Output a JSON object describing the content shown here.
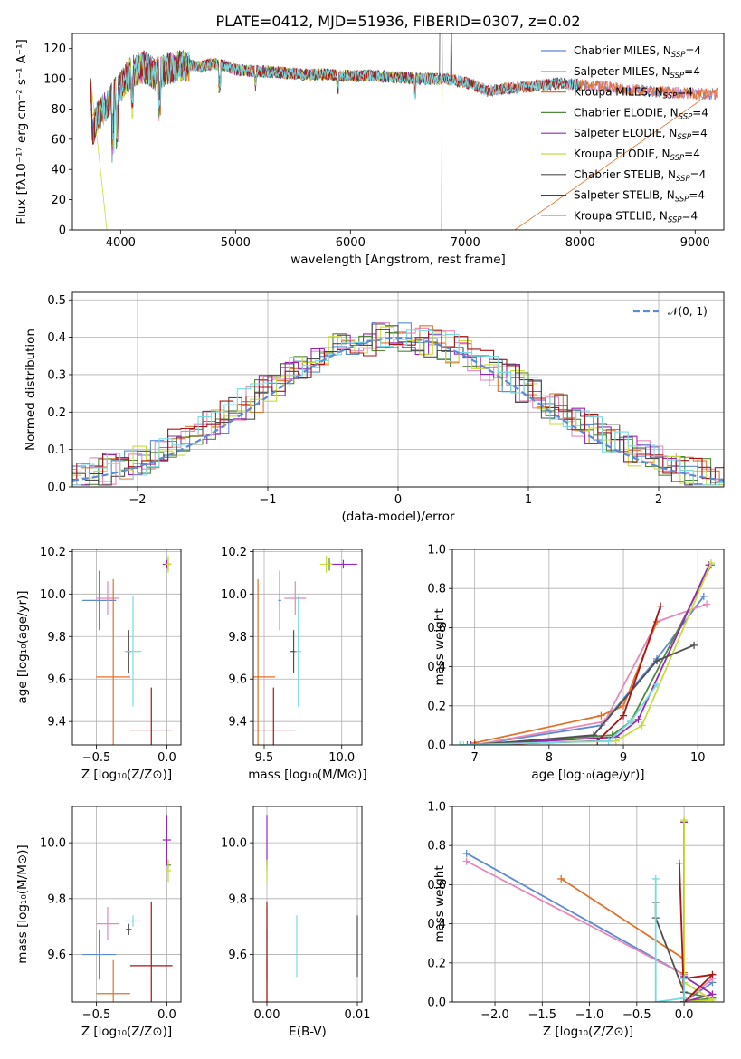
{
  "figure": {
    "title": "PLATE=0412, MJD=51936, FIBERID=0307, z=0.02"
  },
  "colors": {
    "Chabrier MILES": "#5b8bd5",
    "Salpeter MILES": "#e887b8",
    "Kroupa MILES": "#e0722a",
    "Chabrier ELODIE": "#4f8a3c",
    "Salpeter ELODIE": "#9b26b6",
    "Kroupa ELODIE": "#c9dc3a",
    "Chabrier STELIB": "#505050",
    "Salpeter STELIB": "#a81616",
    "Kroupa STELIB": "#76dce0"
  },
  "chart_data": [
    {
      "id": "spectrum",
      "type": "line",
      "title": "PLATE=0412, MJD=51936, FIBERID=0307, z=0.02",
      "xlabel": "wavelength [Angstrom, rest frame]",
      "ylabel": "Flux [fλ10⁻¹⁷ erg cm⁻² s⁻¹ A⁻¹]",
      "xlim": [
        3580,
        9250
      ],
      "ylim": [
        0,
        130
      ],
      "xticks": [
        "4000",
        "5000",
        "6000",
        "7000",
        "8000",
        "9000"
      ],
      "yticks": [
        "0",
        "20",
        "40",
        "60",
        "80",
        "100",
        "120"
      ],
      "grid": false,
      "legend_position": "top-right",
      "legend": [
        {
          "label": "Chabrier MILES, N",
          "sub": "SSP",
          "suffix": "=4"
        },
        {
          "label": "Salpeter MILES, N",
          "sub": "SSP",
          "suffix": "=4"
        },
        {
          "label": "Kroupa MILES, N",
          "sub": "SSP",
          "suffix": "=4"
        },
        {
          "label": "Chabrier ELODIE, N",
          "sub": "SSP",
          "suffix": "=4"
        },
        {
          "label": "Salpeter ELODIE, N",
          "sub": "SSP",
          "suffix": "=4"
        },
        {
          "label": "Kroupa ELODIE, N",
          "sub": "SSP",
          "suffix": "=4"
        },
        {
          "label": "Chabrier STELIB, N",
          "sub": "SSP",
          "suffix": "=4"
        },
        {
          "label": "Salpeter STELIB, N",
          "sub": "SSP",
          "suffix": "=4"
        },
        {
          "label": "Kroupa STELIB, N",
          "sub": "SSP",
          "suffix": "=4"
        }
      ],
      "continuum": {
        "x": [
          3750,
          3800,
          3850,
          3900,
          3950,
          4000,
          4100,
          4200,
          4300,
          4400,
          4500,
          4600,
          4700,
          4800,
          4900,
          5000,
          5200,
          5400,
          5600,
          5800,
          6000,
          6200,
          6400,
          6600,
          6800,
          7000,
          7200,
          7400,
          7600,
          7800,
          8000,
          8200,
          8400,
          8600,
          8800,
          9000,
          9200
        ],
        "y": [
          65,
          75,
          80,
          85,
          90,
          95,
          105,
          108,
          103,
          106,
          108,
          109,
          108,
          110,
          109,
          106,
          105,
          104,
          103,
          103,
          102,
          102,
          101,
          100,
          100,
          98,
          92,
          94,
          95,
          97,
          96,
          95,
          93,
          92,
          91,
          90,
          90
        ]
      }
    },
    {
      "id": "residuals",
      "type": "line",
      "xlabel": "(data-model)/error",
      "ylabel": "Normed distribution",
      "xlim": [
        -2.5,
        2.5
      ],
      "ylim": [
        0,
        0.52
      ],
      "xticks": [
        "−2",
        "−1",
        "0",
        "1",
        "2"
      ],
      "yticks": [
        "0.0",
        "0.1",
        "0.2",
        "0.3",
        "0.4",
        "0.5"
      ],
      "grid": true,
      "legend_position": "top-right",
      "legend_label": "𝒩(0, 1)",
      "normal": {
        "mu": 0,
        "sigma": 1
      }
    },
    {
      "id": "age_vs_Z",
      "type": "scatter",
      "xlabel": "Z [log₁₀(Z/Z⊙)]",
      "ylabel": "age  [log₁₀(age/yr)]",
      "xlim": [
        -0.67,
        0.1
      ],
      "ylim": [
        9.29,
        10.21
      ],
      "xticks": [
        "−0.5",
        "0.0"
      ],
      "yticks": [
        "9.4",
        "9.6",
        "9.8",
        "10.0",
        "10.2"
      ],
      "grid": true,
      "points": [
        {
          "model": "Chabrier MILES",
          "x": -0.48,
          "y": 9.97,
          "xerr": 0.12,
          "yerr": 0.14
        },
        {
          "model": "Salpeter MILES",
          "x": -0.42,
          "y": 9.98,
          "xerr": 0.08,
          "yerr": 0.08
        },
        {
          "model": "Kroupa MILES",
          "x": -0.38,
          "y": 9.61,
          "xerr": 0.12,
          "yerr": 0.46
        },
        {
          "model": "Chabrier ELODIE",
          "x": 0.01,
          "y": 10.14,
          "xerr": 0.02,
          "yerr": 0.03
        },
        {
          "model": "Salpeter ELODIE",
          "x": 0.0,
          "y": 10.14,
          "xerr": 0.03,
          "yerr": 0.02
        },
        {
          "model": "Kroupa ELODIE",
          "x": 0.01,
          "y": 10.14,
          "xerr": 0.02,
          "yerr": 0.04
        },
        {
          "model": "Chabrier STELIB",
          "x": -0.27,
          "y": 9.73,
          "xerr": 0.02,
          "yerr": 0.1
        },
        {
          "model": "Salpeter STELIB",
          "x": -0.11,
          "y": 9.36,
          "xerr": 0.15,
          "yerr": 0.2
        },
        {
          "model": "Kroupa STELIB",
          "x": -0.24,
          "y": 9.73,
          "xerr": 0.06,
          "yerr": 0.26
        }
      ]
    },
    {
      "id": "age_vs_mass",
      "type": "scatter",
      "xlabel": "mass [log₁₀(M/M⊙)]",
      "xlim": [
        9.43,
        10.13
      ],
      "ylim": [
        9.29,
        10.21
      ],
      "xticks": [
        "9.5",
        "10.0"
      ],
      "yticks": [
        "9.4",
        "9.6",
        "9.8",
        "10.0",
        "10.2"
      ],
      "grid": true,
      "points": [
        {
          "model": "Chabrier MILES",
          "x": 9.6,
          "y": 9.97,
          "xerr": 0.01,
          "yerr": 0.14
        },
        {
          "model": "Salpeter MILES",
          "x": 9.7,
          "y": 9.98,
          "xerr": 0.07,
          "yerr": 0.08
        },
        {
          "model": "Kroupa MILES",
          "x": 9.46,
          "y": 9.61,
          "xerr": 0.11,
          "yerr": 0.46
        },
        {
          "model": "Chabrier ELODIE",
          "x": 9.92,
          "y": 10.14,
          "xerr": 0.02,
          "yerr": 0.03
        },
        {
          "model": "Salpeter ELODIE",
          "x": 10.01,
          "y": 10.14,
          "xerr": 0.09,
          "yerr": 0.02
        },
        {
          "model": "Kroupa ELODIE",
          "x": 9.9,
          "y": 10.14,
          "xerr": 0.04,
          "yerr": 0.04
        },
        {
          "model": "Chabrier STELIB",
          "x": 9.69,
          "y": 9.73,
          "xerr": 0.02,
          "yerr": 0.1
        },
        {
          "model": "Salpeter STELIB",
          "x": 9.56,
          "y": 9.36,
          "xerr": 0.14,
          "yerr": 0.2
        },
        {
          "model": "Kroupa STELIB",
          "x": 9.72,
          "y": 9.73,
          "xerr": 0.02,
          "yerr": 0.26
        }
      ]
    },
    {
      "id": "weight_vs_age",
      "type": "line",
      "xlabel": "age  [log₁₀(age/yr)]",
      "ylabel": "mass weight",
      "xlim": [
        6.7,
        10.35
      ],
      "ylim": [
        0,
        1.0
      ],
      "xticks": [
        "7",
        "8",
        "9",
        "10"
      ],
      "yticks": [
        "0.0",
        "0.2",
        "0.4",
        "0.6",
        "0.8",
        "1.0"
      ],
      "grid": true,
      "series": [
        {
          "model": "Chabrier MILES",
          "x": [
            7.0,
            8.7,
            9.45,
            10.08
          ],
          "y": [
            0.0,
            0.1,
            0.44,
            0.76
          ]
        },
        {
          "model": "Salpeter MILES",
          "x": [
            7.0,
            8.75,
            9.45,
            10.12
          ],
          "y": [
            0.0,
            0.12,
            0.63,
            0.72
          ]
        },
        {
          "model": "Kroupa MILES",
          "x": [
            7.0,
            8.7,
            9.0,
            9.45
          ],
          "y": [
            0.01,
            0.15,
            0.2,
            0.63
          ]
        },
        {
          "model": "Chabrier ELODIE",
          "x": [
            6.9,
            8.85,
            9.1,
            10.18
          ],
          "y": [
            0.0,
            0.05,
            0.12,
            0.92
          ]
        },
        {
          "model": "Salpeter ELODIE",
          "x": [
            6.95,
            8.9,
            9.2,
            10.15
          ],
          "y": [
            0.0,
            0.04,
            0.13,
            0.92
          ]
        },
        {
          "model": "Kroupa ELODIE",
          "x": [
            6.85,
            8.9,
            9.25,
            10.18
          ],
          "y": [
            0.0,
            0.02,
            0.1,
            0.93
          ]
        },
        {
          "model": "Chabrier STELIB",
          "x": [
            7.0,
            8.6,
            9.45,
            9.95
          ],
          "y": [
            0.0,
            0.05,
            0.43,
            0.51
          ]
        },
        {
          "model": "Salpeter STELIB",
          "x": [
            7.0,
            8.65,
            9.0,
            9.5
          ],
          "y": [
            0.0,
            0.02,
            0.15,
            0.71
          ]
        },
        {
          "model": "Kroupa STELIB",
          "x": [
            6.8,
            8.8,
            9.1,
            9.45
          ],
          "y": [
            0.0,
            0.02,
            0.12,
            0.31
          ]
        }
      ]
    },
    {
      "id": "mass_vs_Z",
      "type": "scatter",
      "xlabel": "Z [log₁₀(Z/Z⊙)]",
      "ylabel": "mass [log₁₀(M/M⊙)]",
      "xlim": [
        -0.67,
        0.1
      ],
      "ylim": [
        9.43,
        10.13
      ],
      "xticks": [
        "−0.5",
        "0.0"
      ],
      "yticks": [
        "9.6",
        "9.8",
        "10.0"
      ],
      "grid": true,
      "points": [
        {
          "model": "Chabrier MILES",
          "x": -0.48,
          "y": 9.6,
          "xerr": 0.12,
          "yerr": 0.09
        },
        {
          "model": "Salpeter MILES",
          "x": -0.42,
          "y": 9.71,
          "xerr": 0.08,
          "yerr": 0.06
        },
        {
          "model": "Kroupa MILES",
          "x": -0.38,
          "y": 9.46,
          "xerr": 0.12,
          "yerr": 0.12
        },
        {
          "model": "Chabrier ELODIE",
          "x": 0.01,
          "y": 9.92,
          "xerr": 0.02,
          "yerr": 0.02
        },
        {
          "model": "Salpeter ELODIE",
          "x": 0.0,
          "y": 10.01,
          "xerr": 0.03,
          "yerr": 0.09
        },
        {
          "model": "Kroupa ELODIE",
          "x": 0.01,
          "y": 9.9,
          "xerr": 0.02,
          "yerr": 0.04
        },
        {
          "model": "Chabrier STELIB",
          "x": -0.27,
          "y": 9.69,
          "xerr": 0.02,
          "yerr": 0.02
        },
        {
          "model": "Salpeter STELIB",
          "x": -0.11,
          "y": 9.56,
          "xerr": 0.15,
          "yerr": 0.23
        },
        {
          "model": "Kroupa STELIB",
          "x": -0.24,
          "y": 9.72,
          "xerr": 0.06,
          "yerr": 0.02
        }
      ]
    },
    {
      "id": "mass_vs_EBV",
      "type": "scatter",
      "xlabel": "E(B-V)",
      "xlim": [
        -0.0015,
        0.0105
      ],
      "ylim": [
        9.43,
        10.13
      ],
      "xticks": [
        "0.00",
        "0.01"
      ],
      "yticks": [
        "9.6",
        "9.8",
        "10.0"
      ],
      "grid": true,
      "points": [
        {
          "model": "Chabrier MILES",
          "x": 0.0,
          "y": 9.6,
          "yerr": 0.09
        },
        {
          "model": "Salpeter MILES",
          "x": 0.0,
          "y": 9.71,
          "yerr": 0.06
        },
        {
          "model": "Kroupa MILES",
          "x": 0.0,
          "y": 9.46,
          "yerr": 0.12
        },
        {
          "model": "Chabrier ELODIE",
          "x": 0.0,
          "y": 9.92,
          "yerr": 0.02
        },
        {
          "model": "Salpeter ELODIE",
          "x": 0.0,
          "y": 10.01,
          "yerr": 0.09
        },
        {
          "model": "Kroupa ELODIE",
          "x": 0.0,
          "y": 9.9,
          "yerr": 0.04
        },
        {
          "model": "Chabrier STELIB",
          "x": 0.01,
          "y": 9.63,
          "yerr": 0.11
        },
        {
          "model": "Salpeter STELIB",
          "x": 0.0,
          "y": 9.56,
          "yerr": 0.23
        },
        {
          "model": "Kroupa STELIB",
          "x": 0.0033,
          "y": 9.63,
          "yerr": 0.11
        }
      ]
    },
    {
      "id": "weight_vs_Z",
      "type": "line",
      "xlabel": "Z [log₁₀(Z/Z⊙)]",
      "ylabel": "mass weight",
      "xlim": [
        -2.45,
        0.42
      ],
      "ylim": [
        0,
        1.0
      ],
      "xticks": [
        "−2.0",
        "−1.5",
        "−1.0",
        "−0.5",
        "0.0"
      ],
      "yticks": [
        "0.0",
        "0.2",
        "0.4",
        "0.6",
        "0.8",
        "1.0"
      ],
      "grid": true,
      "series": [
        {
          "model": "Chabrier MILES",
          "x": [
            -2.3,
            0.0,
            0.0,
            0.3
          ],
          "y": [
            0.76,
            0.14,
            0.0,
            0.1
          ]
        },
        {
          "model": "Salpeter MILES",
          "x": [
            -2.3,
            0.0,
            0.0,
            0.3
          ],
          "y": [
            0.72,
            0.14,
            0.0,
            0.12
          ]
        },
        {
          "model": "Kroupa MILES",
          "x": [
            -1.3,
            0.0,
            0.0,
            0.0
          ],
          "y": [
            0.63,
            0.22,
            0.15,
            0.0
          ]
        },
        {
          "model": "Chabrier ELODIE",
          "x": [
            0.0,
            0.0,
            0.3,
            0.0
          ],
          "y": [
            0.92,
            0.0,
            0.02,
            0.05
          ]
        },
        {
          "model": "Salpeter ELODIE",
          "x": [
            0.0,
            0.0,
            0.3,
            0.0
          ],
          "y": [
            0.92,
            0.0,
            0.04,
            0.13
          ]
        },
        {
          "model": "Kroupa ELODIE",
          "x": [
            0.0,
            0.0,
            0.3,
            0.0
          ],
          "y": [
            0.93,
            0.0,
            0.01,
            0.1
          ]
        },
        {
          "model": "Chabrier STELIB",
          "x": [
            -0.3,
            -0.3,
            0.0,
            0.0
          ],
          "y": [
            0.51,
            0.43,
            0.05,
            0.0
          ]
        },
        {
          "model": "Salpeter STELIB",
          "x": [
            -0.05,
            0.0,
            0.3,
            0.0
          ],
          "y": [
            0.71,
            0.0,
            0.14,
            0.12
          ]
        },
        {
          "model": "Kroupa STELIB",
          "x": [
            -0.3,
            -0.3,
            0.0,
            0.0
          ],
          "y": [
            0.63,
            0.0,
            0.02,
            0.12
          ]
        }
      ]
    }
  ]
}
